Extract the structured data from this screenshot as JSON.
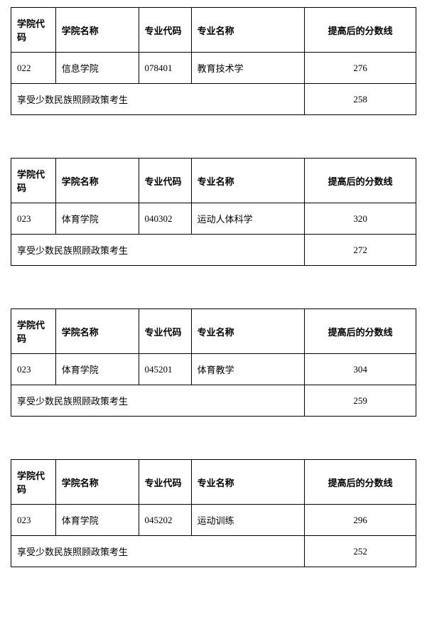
{
  "headers": {
    "college_code": "学院代码",
    "college_name": "学院名称",
    "major_code": "专业代码",
    "major_name": "专业名称",
    "score_line": "提高后的分数线"
  },
  "minority_label": "享受少数民族照顾政策考生",
  "tables": [
    {
      "college_code": "022",
      "college_name": "信息学院",
      "major_code": "078401",
      "major_name": "教育技术学",
      "score": "276",
      "minority_score": "258"
    },
    {
      "college_code": "023",
      "college_name": "体育学院",
      "major_code": "040302",
      "major_name": "运动人体科学",
      "score": "320",
      "minority_score": "272"
    },
    {
      "college_code": "023",
      "college_name": "体育学院",
      "major_code": "045201",
      "major_name": "体育教学",
      "score": "304",
      "minority_score": "259"
    },
    {
      "college_code": "023",
      "college_name": "体育学院",
      "major_code": "045202",
      "major_name": "运动训练",
      "score": "296",
      "minority_score": "252"
    }
  ],
  "styling": {
    "border_color": "#000000",
    "background_color": "#ffffff",
    "text_color": "#000000",
    "font_size": 13,
    "header_font_weight": "bold",
    "cell_padding": "12px 8px",
    "table_spacing": 60,
    "column_widths": {
      "college_code": "11%",
      "college_name": "20.5%",
      "major_code": "13%",
      "major_name": "28%",
      "score": "27.5%"
    }
  }
}
